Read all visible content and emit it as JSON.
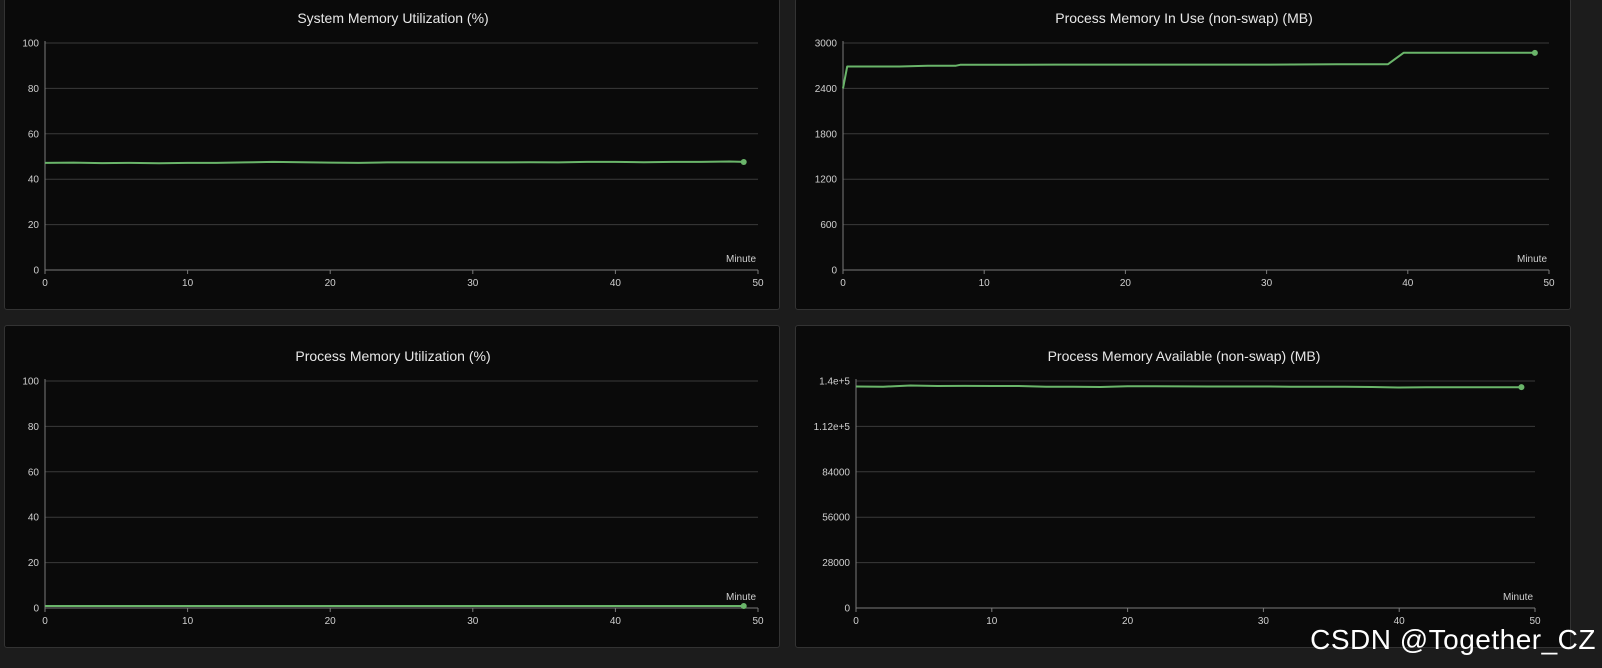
{
  "watermark": "CSDN @Together_CZ",
  "chart_data": [
    {
      "type": "line",
      "title": "System Memory Utilization (%)",
      "xlabel": "Minute",
      "ylabel": "",
      "xlim": [
        0,
        50
      ],
      "ylim": [
        0,
        100
      ],
      "xticks": [
        "0",
        "10",
        "20",
        "30",
        "40",
        "50"
      ],
      "yticks": [
        "0",
        "20",
        "40",
        "60",
        "80",
        "100"
      ],
      "grid": true,
      "series": [
        {
          "color": "#6ab56a",
          "x": [
            0,
            2,
            4,
            6,
            8,
            10,
            12,
            14,
            16,
            18,
            20,
            22,
            24,
            26,
            28,
            30,
            32,
            34,
            36,
            38,
            40,
            42,
            44,
            46,
            48,
            49
          ],
          "y": [
            47.2,
            47.3,
            47.1,
            47.2,
            47.0,
            47.2,
            47.2,
            47.4,
            47.6,
            47.5,
            47.3,
            47.2,
            47.4,
            47.4,
            47.4,
            47.4,
            47.4,
            47.5,
            47.4,
            47.6,
            47.6,
            47.5,
            47.6,
            47.6,
            47.8,
            47.6
          ]
        }
      ]
    },
    {
      "type": "line",
      "title": "Process Memory In Use (non-swap) (MB)",
      "xlabel": "Minute",
      "ylabel": "",
      "xlim": [
        0,
        50
      ],
      "ylim": [
        0,
        3000
      ],
      "xticks": [
        "0",
        "10",
        "20",
        "30",
        "40",
        "50"
      ],
      "yticks": [
        "0",
        "600",
        "1200",
        "1800",
        "2400",
        "3000"
      ],
      "grid": true,
      "series": [
        {
          "color": "#6ab56a",
          "x": [
            0,
            0.3,
            2,
            4,
            6,
            8,
            8.3,
            10,
            15,
            20,
            25,
            30,
            35,
            38.6,
            39.7,
            42,
            45,
            48,
            49
          ],
          "y": [
            2400,
            2690,
            2690,
            2690,
            2700,
            2700,
            2712,
            2712,
            2715,
            2715,
            2715,
            2715,
            2720,
            2720,
            2870,
            2870,
            2870,
            2870,
            2870
          ]
        }
      ]
    },
    {
      "type": "line",
      "title": "Process Memory Utilization (%)",
      "xlabel": "Minute",
      "ylabel": "",
      "xlim": [
        0,
        50
      ],
      "ylim": [
        0,
        100
      ],
      "xticks": [
        "0",
        "10",
        "20",
        "30",
        "40",
        "50"
      ],
      "yticks": [
        "0",
        "20",
        "40",
        "60",
        "80",
        "100"
      ],
      "grid": true,
      "series": [
        {
          "color": "#6ab56a",
          "x": [
            0,
            10,
            20,
            30,
            40,
            49
          ],
          "y": [
            0.9,
            0.9,
            0.9,
            0.9,
            0.9,
            0.9
          ]
        }
      ]
    },
    {
      "type": "line",
      "title": "Process Memory Available (non-swap) (MB)",
      "xlabel": "Minute",
      "ylabel": "",
      "xlim": [
        0,
        50
      ],
      "ylim": [
        0,
        140000
      ],
      "xticks": [
        "0",
        "10",
        "20",
        "30",
        "40",
        "50"
      ],
      "yticks": [
        "0",
        "28000",
        "56000",
        "84000",
        "1.12e+5",
        "1.4e+5"
      ],
      "grid": true,
      "series": [
        {
          "color": "#6ab56a",
          "x": [
            0,
            2,
            4,
            6,
            8,
            10,
            12,
            14,
            16,
            18,
            20,
            22,
            24,
            26,
            28,
            30,
            32,
            34,
            36,
            38,
            40,
            42,
            44,
            46,
            48,
            49
          ],
          "y": [
            136600,
            136500,
            137200,
            136900,
            137000,
            136900,
            136900,
            136400,
            136400,
            136300,
            136800,
            136800,
            136700,
            136600,
            136600,
            136600,
            136500,
            136500,
            136400,
            136300,
            136000,
            136200,
            136200,
            136100,
            136200,
            136200
          ]
        }
      ]
    }
  ]
}
